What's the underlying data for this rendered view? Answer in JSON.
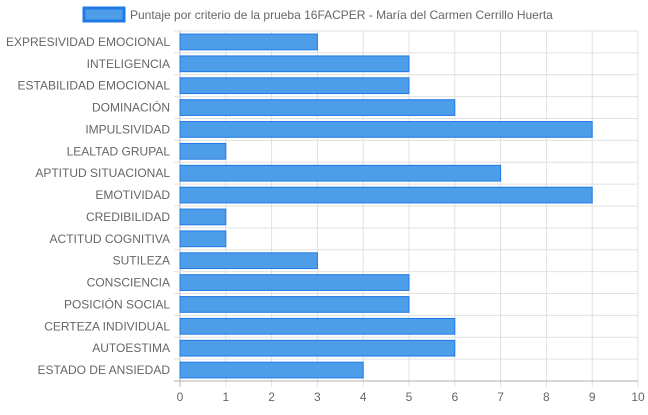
{
  "chart_data": {
    "type": "bar",
    "orientation": "horizontal",
    "categories": [
      "EXPRESIVIDAD EMOCIONAL",
      "INTELIGENCIA",
      "ESTABILIDAD EMOCIONAL",
      "DOMINACIÓN",
      "IMPULSIVIDAD",
      "LEALTAD GRUPAL",
      "APTITUD SITUACIONAL",
      "EMOTIVIDAD",
      "CREDIBILIDAD",
      "ACTITUD COGNITIVA",
      "SUTILEZA",
      "CONSCIENCIA",
      "POSICIÓN SOCIAL",
      "CERTEZA INDIVIDUAL",
      "AUTOESTIMA",
      "ESTADO DE ANSIEDAD"
    ],
    "series": [
      {
        "name": "Puntaje por criterio de la prueba 16FACPER - María del Carmen Cerrillo Huerta",
        "values": [
          3,
          5,
          5,
          6,
          9,
          1,
          7,
          9,
          1,
          1,
          3,
          5,
          5,
          6,
          6,
          4
        ],
        "color": "#4e9de9",
        "border_color": "#1f7ae6"
      }
    ],
    "xlim": [
      0,
      10
    ],
    "x_ticks": [
      "0",
      "1",
      "2",
      "3",
      "4",
      "5",
      "6",
      "7",
      "8",
      "9",
      "10"
    ],
    "grid": true,
    "legend_position": "top-center"
  }
}
